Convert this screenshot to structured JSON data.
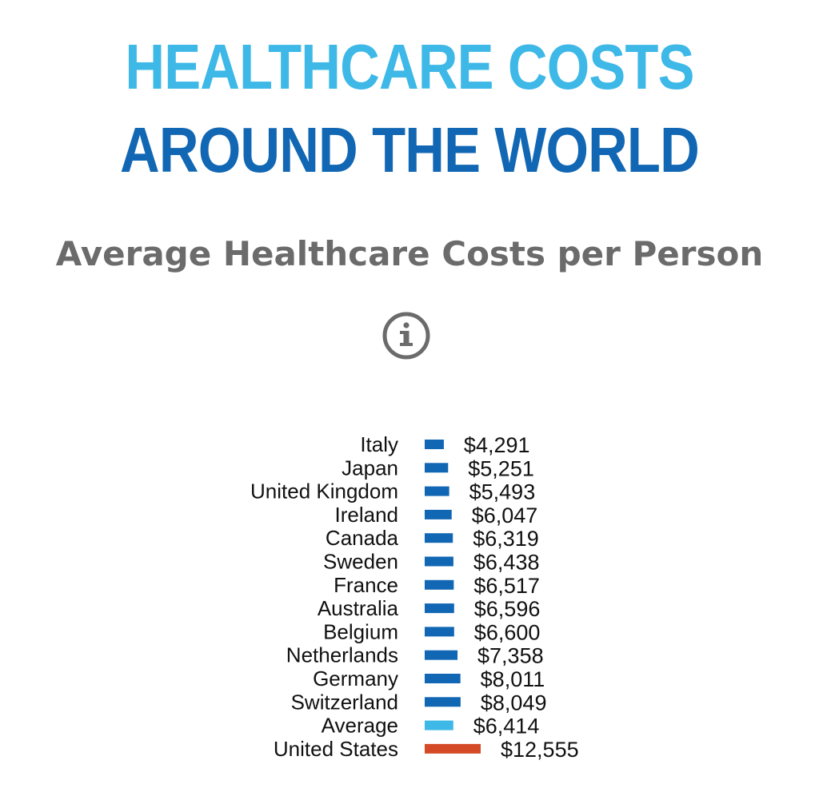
{
  "header": {
    "title_line_1": "HEALTHCARE COSTS",
    "title_line_2": "AROUND THE WORLD",
    "subtitle": "Average Healthcare Costs per Person",
    "info_icon": "info-icon"
  },
  "colors": {
    "title_light": "#3db8e7",
    "title_dark": "#1167b3",
    "bar_country": "#1167b3",
    "bar_average": "#3db8e7",
    "bar_us": "#d44a27",
    "subtitle": "#6b6b6b"
  },
  "chart_data": {
    "type": "bar",
    "orientation": "horizontal",
    "title": "Average Healthcare Costs per Person",
    "categories": [
      "Italy",
      "Japan",
      "United Kingdom",
      "Ireland",
      "Canada",
      "Sweden",
      "France",
      "Australia",
      "Belgium",
      "Netherlands",
      "Germany",
      "Switzerland",
      "Average",
      "United States"
    ],
    "values": [
      4291,
      5251,
      5493,
      6047,
      6319,
      6438,
      6517,
      6596,
      6600,
      7358,
      8011,
      8049,
      6414,
      12555
    ],
    "value_labels": [
      "$4,291",
      "$5,251",
      "$5,493",
      "$6,047",
      "$6,319",
      "$6,438",
      "$6,517",
      "$6,596",
      "$6,600",
      "$7,358",
      "$8,011",
      "$8,049",
      "$6,414",
      "$12,555"
    ],
    "bar_colors": [
      "#1167b3",
      "#1167b3",
      "#1167b3",
      "#1167b3",
      "#1167b3",
      "#1167b3",
      "#1167b3",
      "#1167b3",
      "#1167b3",
      "#1167b3",
      "#1167b3",
      "#1167b3",
      "#3db8e7",
      "#d44a27"
    ],
    "xlabel": "",
    "ylabel": "",
    "grid": false,
    "legend": "none"
  }
}
